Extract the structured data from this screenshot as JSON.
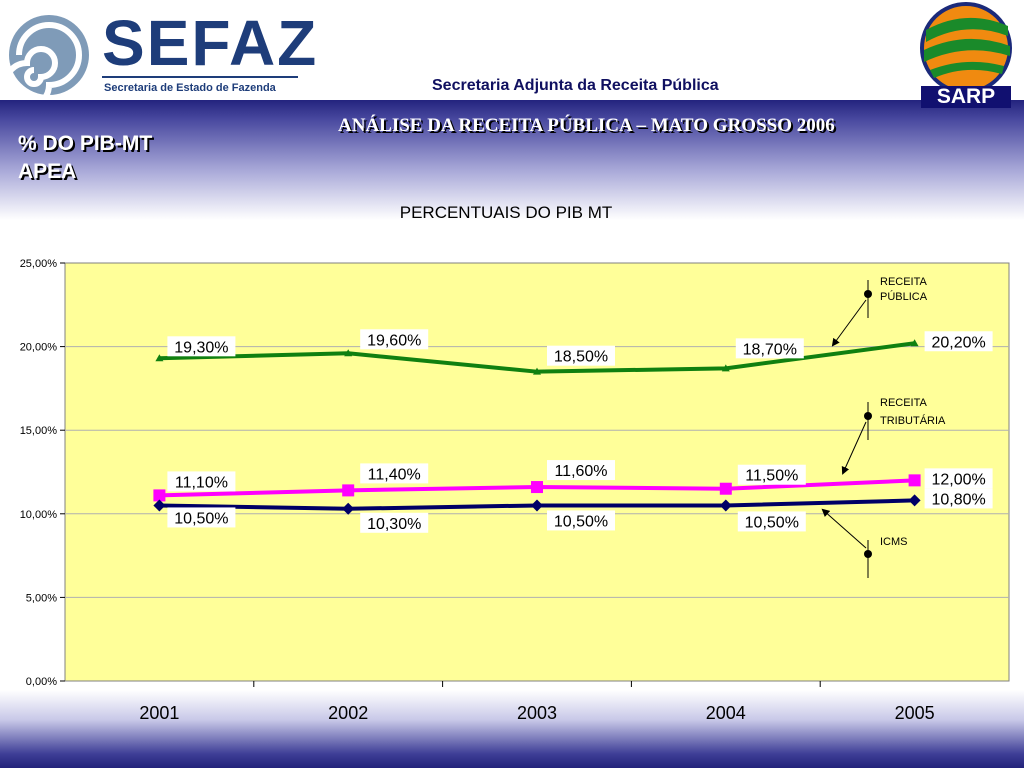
{
  "header": {
    "sefaz_name": "SEFAZ",
    "sefaz_subtitle": "Secretaria de Estado de Fazenda",
    "department": "Secretaria Adjunta da Receita Pública",
    "sarp_label": "SARP"
  },
  "slide": {
    "title": "ANÁLISE DA RECEITA PÚBLICA – MATO GROSSO 2006",
    "section_line1": "% DO PIB-MT",
    "section_line2": "APEA"
  },
  "colors": {
    "plot_bg": "#ffff99",
    "receita_publica": "#108010",
    "receita_tributaria": "#ff00ff",
    "icms": "#000066"
  },
  "chart_data": {
    "type": "line",
    "title": "PERCENTUAIS DO PIB MT",
    "categories": [
      "2001",
      "2002",
      "2003",
      "2004",
      "2005"
    ],
    "ylim": [
      0,
      25
    ],
    "yticks": [
      "0,00%",
      "5,00%",
      "10,00%",
      "15,00%",
      "20,00%",
      "25,00%"
    ],
    "series": [
      {
        "name": "RECEITA PÚBLICA",
        "legend_lines": [
          "RECEITA",
          "PÚBLICA"
        ],
        "marker": "triangle",
        "values": [
          19.3,
          19.6,
          18.5,
          18.7,
          20.2
        ],
        "labels": [
          "19,30%",
          "19,60%",
          "18,50%",
          "18,70%",
          "20,20%"
        ]
      },
      {
        "name": "RECEITA TRIBUTÁRIA",
        "legend_lines": [
          "RECEITA",
          "TRIBUTÁRIA"
        ],
        "marker": "square",
        "values": [
          11.1,
          11.4,
          11.6,
          11.5,
          12.0
        ],
        "labels": [
          "11,10%",
          "11,40%",
          "11,60%",
          "11,50%",
          "12,00%"
        ]
      },
      {
        "name": "ICMS",
        "legend_lines": [
          "ICMS"
        ],
        "marker": "diamond",
        "values": [
          10.5,
          10.3,
          10.5,
          10.5,
          10.8
        ],
        "labels": [
          "10,50%",
          "10,30%",
          "10,50%",
          "10,50%",
          "10,80%"
        ]
      }
    ]
  }
}
